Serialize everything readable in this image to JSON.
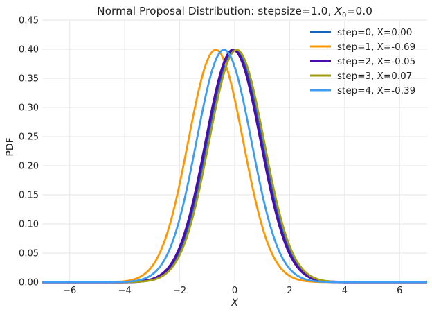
{
  "chart_data": {
    "type": "line",
    "title": "Normal Proposal Distribution: stepsize=1.0, ",
    "title_math_base": "X",
    "title_math_sub": "0",
    "title_suffix": "=0.0",
    "xlabel": "X",
    "ylabel": "PDF",
    "xlim": [
      -7,
      7
    ],
    "ylim": [
      0,
      0.45
    ],
    "x_ticks": [
      -6,
      -4,
      -2,
      0,
      2,
      4,
      6
    ],
    "x_tick_labels": [
      "−6",
      "−4",
      "−2",
      "0",
      "2",
      "4",
      "6"
    ],
    "y_ticks": [
      0.0,
      0.05,
      0.1,
      0.15,
      0.2,
      0.25,
      0.3,
      0.35,
      0.4,
      0.45
    ],
    "y_tick_labels": [
      "0.00",
      "0.05",
      "0.10",
      "0.15",
      "0.20",
      "0.25",
      "0.30",
      "0.35",
      "0.40",
      "0.45"
    ],
    "grid": true,
    "legend_position": "top-right",
    "curve_kind": "normal pdf",
    "stddev": 1.0,
    "series": [
      {
        "name": "step=0, X=0.00",
        "mean": 0.0,
        "color": "#1565c0"
      },
      {
        "name": "step=1, X=-0.69",
        "mean": -0.69,
        "color": "#ff9800"
      },
      {
        "name": "step=2, X=-0.05",
        "mean": -0.05,
        "color": "#4a0cad"
      },
      {
        "name": "step=3, X=0.07",
        "mean": 0.07,
        "color": "#a39e0f"
      },
      {
        "name": "step=4, X=-0.39",
        "mean": -0.39,
        "color": "#3d9df3"
      }
    ]
  }
}
